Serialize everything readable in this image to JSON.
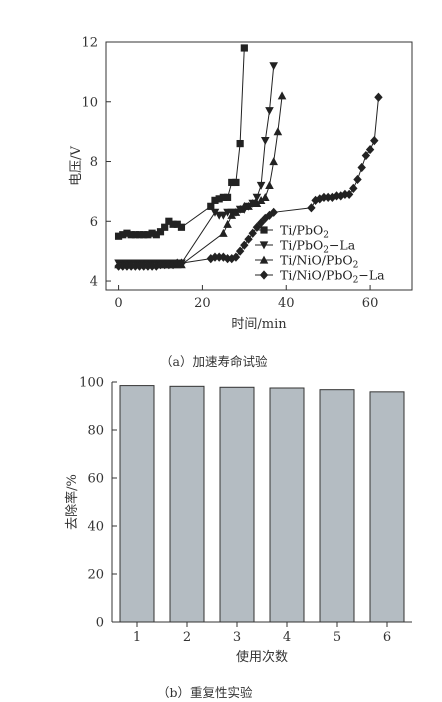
{
  "chart_data": [
    {
      "type": "line",
      "xlabel": "时间/min",
      "ylabel": "电压/V",
      "xlim": [
        -3,
        70
      ],
      "ylim": [
        3.7,
        12
      ],
      "xticks": [
        0,
        20,
        40,
        60
      ],
      "yticks": [
        4,
        6,
        8,
        10,
        12
      ],
      "legend_position": "lower-right",
      "series": [
        {
          "name": "Ti/PbO2",
          "legend_label": [
            "Ti/PbO",
            "2",
            ""
          ],
          "marker": "square",
          "x": [
            0,
            1,
            2,
            3,
            4,
            5,
            6,
            7,
            8,
            9,
            10,
            11,
            12,
            13,
            14,
            15,
            22,
            23,
            24,
            25,
            26,
            27,
            28,
            29,
            30
          ],
          "y": [
            5.5,
            5.55,
            5.6,
            5.55,
            5.55,
            5.55,
            5.55,
            5.55,
            5.6,
            5.55,
            5.65,
            5.8,
            6.0,
            5.9,
            5.9,
            5.8,
            6.5,
            6.7,
            6.75,
            6.8,
            6.8,
            7.3,
            7.3,
            8.6,
            11.8
          ]
        },
        {
          "name": "Ti/PbO2-La",
          "legend_label": [
            "Ti/PbO",
            "2",
            "−La"
          ],
          "marker": "triangle-down",
          "x": [
            0,
            1,
            2,
            3,
            4,
            5,
            6,
            7,
            8,
            9,
            10,
            11,
            12,
            13,
            14,
            15,
            23,
            24,
            25,
            26,
            27,
            28,
            29,
            30,
            31,
            32,
            33,
            34,
            35,
            36,
            37
          ],
          "y": [
            4.6,
            4.6,
            4.6,
            4.6,
            4.6,
            4.6,
            4.6,
            4.6,
            4.6,
            4.6,
            4.6,
            4.6,
            4.6,
            4.6,
            4.6,
            4.6,
            6.3,
            6.2,
            6.2,
            6.3,
            6.3,
            6.3,
            6.4,
            6.4,
            6.5,
            6.6,
            6.8,
            7.2,
            8.7,
            9.7,
            11.2
          ]
        },
        {
          "name": "Ti/NiO/PbO2",
          "legend_label": [
            "Ti/NiO/PbO",
            "2",
            ""
          ],
          "marker": "triangle-up",
          "x": [
            0,
            1,
            2,
            3,
            4,
            5,
            6,
            7,
            8,
            9,
            10,
            11,
            12,
            13,
            14,
            15,
            25,
            26,
            27,
            28,
            29,
            30,
            31,
            32,
            33,
            34,
            35,
            36,
            37,
            38,
            39
          ],
          "y": [
            4.55,
            4.55,
            4.55,
            4.55,
            4.55,
            4.55,
            4.55,
            4.55,
            4.55,
            4.55,
            4.55,
            4.55,
            4.55,
            4.55,
            4.55,
            4.55,
            5.6,
            5.9,
            6.2,
            6.3,
            6.4,
            6.5,
            6.5,
            6.6,
            6.6,
            6.7,
            6.8,
            7.2,
            8.0,
            9.0,
            10.2
          ]
        },
        {
          "name": "Ti/NiO/PbO2-La",
          "legend_label": [
            "Ti/NiO/PbO",
            "2",
            "−La"
          ],
          "marker": "diamond",
          "x": [
            0,
            1,
            2,
            3,
            4,
            5,
            6,
            7,
            8,
            9,
            10,
            11,
            12,
            13,
            14,
            15,
            22,
            23,
            24,
            25,
            26,
            27,
            28,
            29,
            30,
            31,
            32,
            33,
            34,
            35,
            36,
            37,
            46,
            47,
            48,
            49,
            50,
            51,
            52,
            53,
            54,
            55,
            56,
            57,
            58,
            59,
            60,
            61,
            62
          ],
          "y": [
            4.5,
            4.5,
            4.5,
            4.5,
            4.5,
            4.5,
            4.5,
            4.5,
            4.5,
            4.5,
            4.55,
            4.55,
            4.55,
            4.55,
            4.6,
            4.6,
            4.75,
            4.8,
            4.8,
            4.8,
            4.75,
            4.75,
            4.8,
            5.0,
            5.2,
            5.4,
            5.6,
            5.8,
            5.95,
            6.1,
            6.2,
            6.3,
            6.45,
            6.7,
            6.75,
            6.8,
            6.8,
            6.8,
            6.85,
            6.85,
            6.9,
            6.9,
            7.1,
            7.4,
            7.8,
            8.2,
            8.4,
            8.7,
            10.15
          ]
        }
      ]
    },
    {
      "type": "bar",
      "xlabel": "使用次数",
      "ylabel": "去除率/%",
      "categories": [
        "1",
        "2",
        "3",
        "4",
        "5",
        "6"
      ],
      "values": [
        98.5,
        98.2,
        97.8,
        97.5,
        96.8,
        95.9
      ],
      "ylim": [
        0,
        100
      ],
      "yticks": [
        0,
        20,
        40,
        60,
        80,
        100
      ],
      "bar_color": "#b4bcc2"
    }
  ],
  "captions": {
    "a": "（a）加速寿命试验",
    "b": "（b）重复性实验"
  }
}
